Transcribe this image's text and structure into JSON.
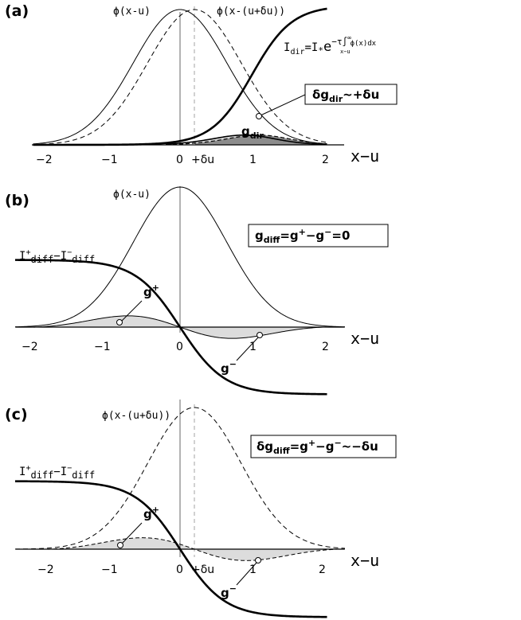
{
  "panels": [
    {
      "label": "(a)",
      "axis_label": "x−u",
      "ticks": [
        "−2",
        "−1",
        "0",
        "+δu",
        "1",
        "2"
      ],
      "phi_label": "ϕ(x-u)",
      "phi_shift_label": "ϕ(x-(u+δu))",
      "formula_main": "I",
      "formula_sub": "dir",
      "formula_rest": "=I",
      "formula_star": "*",
      "formula_e": "e",
      "formula_exp": "−τ∫",
      "formula_lim_top": "∞",
      "formula_lim_bot": "x−u",
      "formula_integrand": "ϕ(x)dx",
      "box_main": "δg",
      "box_sub": "dir",
      "box_rest": "~+δu",
      "region_main": "g",
      "region_sub": "dir"
    },
    {
      "label": "(b)",
      "axis_label": "x−u",
      "ticks": [
        "−2",
        "−1",
        "0",
        "1",
        "2"
      ],
      "phi_label": "ϕ(x-u)",
      "curve_main1": "I",
      "curve_sup1": "+",
      "curve_sub1": "diff",
      "curve_sep": "−I",
      "curve_sup2": "−",
      "curve_sub2": "diff",
      "box_main": "g",
      "box_sub": "diff",
      "box_rest": "=g",
      "box_sup1": "+",
      "box_mid": "−g",
      "box_sup2": "−",
      "box_end": "=0",
      "gplus": "g",
      "gplus_sup": "+",
      "gminus": "g",
      "gminus_sup": "−"
    },
    {
      "label": "(c)",
      "axis_label": "x−u",
      "ticks": [
        "−2",
        "−1",
        "0",
        "+δu",
        "1",
        "2"
      ],
      "phi_shift_label": "ϕ(x-(u+δu))",
      "curve_main1": "I",
      "curve_sup1": "+",
      "curve_sub1": "diff",
      "curve_sep": "−I",
      "curve_sup2": "−",
      "curve_sub2": "diff",
      "box_main": "δg",
      "box_sub": "diff",
      "box_rest": "=g",
      "box_sup1": "+",
      "box_mid": "−g",
      "box_sup2": "−",
      "box_end": "~−δu",
      "gplus": "g",
      "gplus_sup": "+",
      "gminus": "g",
      "gminus_sup": "−"
    }
  ],
  "colors": {
    "ink": "#000000",
    "light_fill": "#dcdcdc",
    "dark_fill": "#8c8c8c",
    "guide": "#9a9a9a"
  }
}
